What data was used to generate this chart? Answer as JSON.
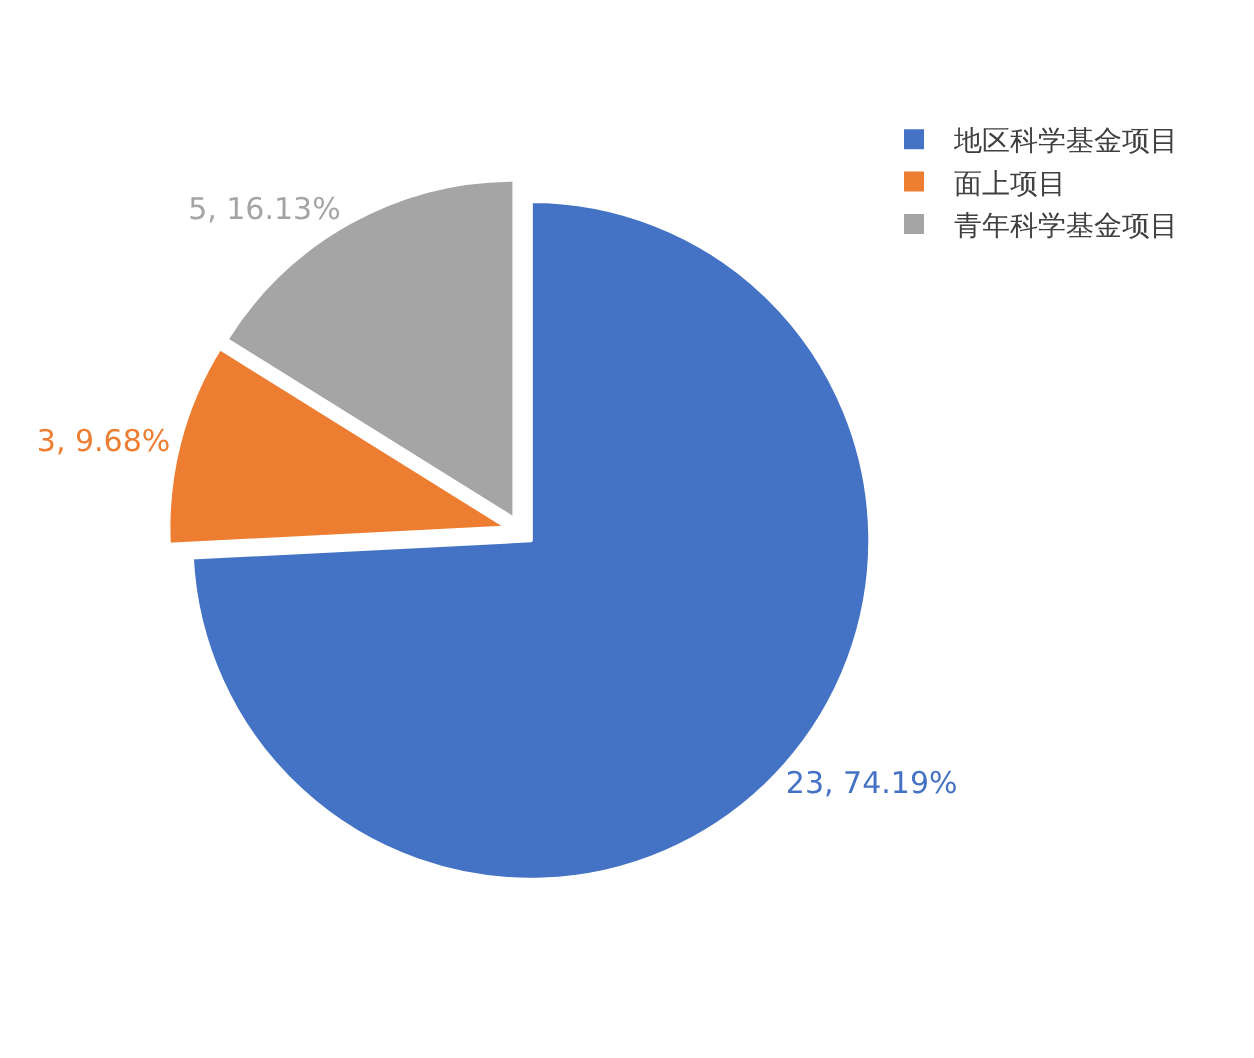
{
  "chart_data": {
    "type": "pie",
    "categories": [
      "地区科学基金项目",
      "面上项目",
      "青年科学基金项目"
    ],
    "values": [
      23,
      3,
      5
    ],
    "colors": [
      "#4472c4",
      "#ed7d31",
      "#a5a5a5"
    ],
    "value_labels": [
      "23, 74.19%",
      "3, 9.68%",
      "5, 16.13%"
    ],
    "legend": "top right"
  }
}
